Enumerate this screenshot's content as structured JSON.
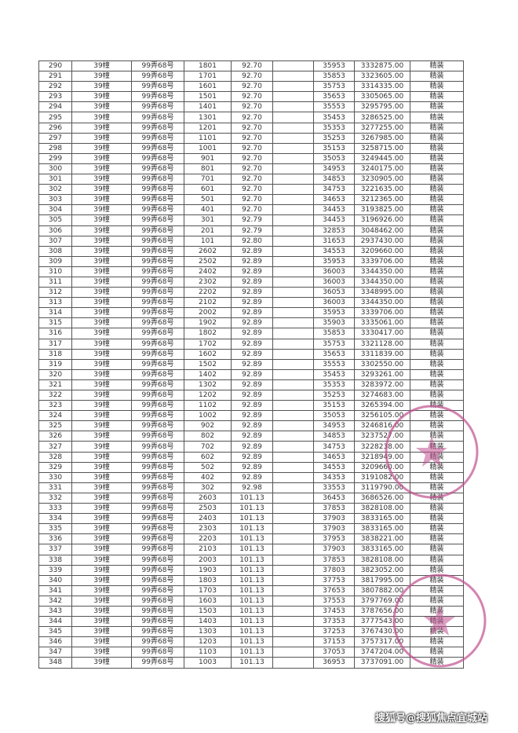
{
  "table": {
    "building": "39幢",
    "address": "99弄68号",
    "finish": "精装",
    "rows": [
      [
        "290",
        "1801",
        "92.70",
        "35953",
        "3332875.00"
      ],
      [
        "291",
        "1701",
        "92.70",
        "35853",
        "3323605.00"
      ],
      [
        "292",
        "1601",
        "92.70",
        "35753",
        "3314335.00"
      ],
      [
        "293",
        "1501",
        "92.70",
        "35653",
        "3305065.00"
      ],
      [
        "294",
        "1401",
        "92.70",
        "35553",
        "3295795.00"
      ],
      [
        "295",
        "1301",
        "92.70",
        "35453",
        "3286525.00"
      ],
      [
        "296",
        "1201",
        "92.70",
        "35353",
        "3277255.00"
      ],
      [
        "297",
        "1101",
        "92.70",
        "35253",
        "3267985.00"
      ],
      [
        "298",
        "1001",
        "92.70",
        "35153",
        "3258715.00"
      ],
      [
        "299",
        "901",
        "92.70",
        "35053",
        "3249445.00"
      ],
      [
        "300",
        "801",
        "92.70",
        "34953",
        "3240175.00"
      ],
      [
        "301",
        "701",
        "92.70",
        "34853",
        "3230905.00"
      ],
      [
        "302",
        "601",
        "92.70",
        "34753",
        "3221635.00"
      ],
      [
        "303",
        "501",
        "92.70",
        "34653",
        "3212365.00"
      ],
      [
        "304",
        "401",
        "92.70",
        "34453",
        "3193825.00"
      ],
      [
        "305",
        "301",
        "92.79",
        "34453",
        "3196926.00"
      ],
      [
        "306",
        "201",
        "92.79",
        "32853",
        "3048462.00"
      ],
      [
        "307",
        "101",
        "92.80",
        "31653",
        "2937430.00"
      ],
      [
        "308",
        "2602",
        "92.89",
        "34553",
        "3209660.00"
      ],
      [
        "309",
        "2502",
        "92.89",
        "35953",
        "3339706.00"
      ],
      [
        "310",
        "2402",
        "92.89",
        "36003",
        "3344350.00"
      ],
      [
        "311",
        "2302",
        "92.89",
        "36003",
        "3344350.00"
      ],
      [
        "312",
        "2202",
        "92.89",
        "36053",
        "3348995.00"
      ],
      [
        "313",
        "2102",
        "92.89",
        "36003",
        "3344350.00"
      ],
      [
        "314",
        "2002",
        "92.89",
        "35953",
        "3339706.00"
      ],
      [
        "315",
        "1902",
        "92.89",
        "35903",
        "3335061.00"
      ],
      [
        "316",
        "1802",
        "92.89",
        "35853",
        "3330417.00"
      ],
      [
        "317",
        "1702",
        "92.89",
        "35753",
        "3321128.00"
      ],
      [
        "318",
        "1602",
        "92.89",
        "35653",
        "3311839.00"
      ],
      [
        "319",
        "1502",
        "92.89",
        "35553",
        "3302550.00"
      ],
      [
        "320",
        "1402",
        "92.89",
        "35453",
        "3293261.00"
      ],
      [
        "321",
        "1302",
        "92.89",
        "35353",
        "3283972.00"
      ],
      [
        "322",
        "1202",
        "92.89",
        "35253",
        "3274683.00"
      ],
      [
        "323",
        "1102",
        "92.89",
        "35153",
        "3265394.00"
      ],
      [
        "324",
        "1002",
        "92.89",
        "35053",
        "3256105.00"
      ],
      [
        "325",
        "902",
        "92.89",
        "34953",
        "3246816.00"
      ],
      [
        "326",
        "802",
        "92.89",
        "34853",
        "3237527.00"
      ],
      [
        "327",
        "702",
        "92.89",
        "34753",
        "3228238.00"
      ],
      [
        "328",
        "602",
        "92.89",
        "34653",
        "3218949.00"
      ],
      [
        "329",
        "502",
        "92.89",
        "34553",
        "3209660.00"
      ],
      [
        "330",
        "402",
        "92.89",
        "34353",
        "3191082.00"
      ],
      [
        "331",
        "302",
        "92.98",
        "33553",
        "3119790.00"
      ],
      [
        "332",
        "2603",
        "101.13",
        "36453",
        "3686526.00"
      ],
      [
        "333",
        "2503",
        "101.13",
        "37853",
        "3828108.00"
      ],
      [
        "334",
        "2403",
        "101.13",
        "37903",
        "3833165.00"
      ],
      [
        "335",
        "2303",
        "101.13",
        "37903",
        "3833165.00"
      ],
      [
        "336",
        "2203",
        "101.13",
        "37953",
        "3838221.00"
      ],
      [
        "337",
        "2103",
        "101.13",
        "37903",
        "3833165.00"
      ],
      [
        "338",
        "2003",
        "101.13",
        "37853",
        "3828108.00"
      ],
      [
        "339",
        "1903",
        "101.13",
        "37803",
        "3823052.00"
      ],
      [
        "340",
        "1803",
        "101.13",
        "37753",
        "3817995.00"
      ],
      [
        "341",
        "1703",
        "101.13",
        "37653",
        "3807882.00"
      ],
      [
        "342",
        "1603",
        "101.13",
        "37553",
        "3797769.00"
      ],
      [
        "343",
        "1503",
        "101.13",
        "37453",
        "3787656.00"
      ],
      [
        "344",
        "1403",
        "101.13",
        "37353",
        "3777543.00"
      ],
      [
        "345",
        "1303",
        "101.13",
        "37253",
        "3767430.00"
      ],
      [
        "346",
        "1203",
        "101.13",
        "37153",
        "3757317.00"
      ],
      [
        "347",
        "1103",
        "101.13",
        "37053",
        "3747204.00"
      ],
      [
        "348",
        "1003",
        "101.13",
        "36953",
        "3737091.00"
      ]
    ]
  },
  "watermark": "搜狐号@搜狐焦点宜城站",
  "colors": {
    "stamp": "#c0508f"
  }
}
